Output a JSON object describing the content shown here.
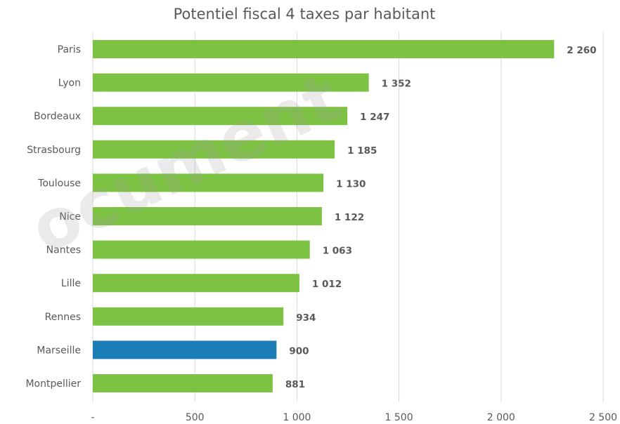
{
  "chart_data": {
    "type": "bar",
    "orientation": "horizontal",
    "title": "Potentiel fiscal 4 taxes par habitant",
    "xlabel": "",
    "ylabel": "",
    "categories": [
      "Paris",
      "Lyon",
      "Bordeaux",
      "Strasbourg",
      "Toulouse",
      "Nice",
      "Nantes",
      "Lille",
      "Rennes",
      "Marseille",
      "Montpellier"
    ],
    "values": [
      2260,
      1352,
      1247,
      1185,
      1130,
      1122,
      1063,
      1012,
      934,
      900,
      881
    ],
    "value_labels": [
      "2 260",
      "1 352",
      "1 247",
      "1 185",
      "1 130",
      "1 122",
      "1 063",
      "1 012",
      "934",
      "900",
      "881"
    ],
    "xlim": [
      0,
      2500
    ],
    "xticks": [
      0,
      500,
      1000,
      1500,
      2000,
      2500
    ],
    "xtick_labels": [
      "-",
      "500",
      "1 000",
      "1 500",
      "2 000",
      "2 500"
    ],
    "grid": "vertical",
    "legend": "none",
    "colors": {
      "default": "#7dc242",
      "highlight": "#1a7db5",
      "highlight_category": "Marseille"
    }
  },
  "watermark": {
    "text": "ocument"
  }
}
